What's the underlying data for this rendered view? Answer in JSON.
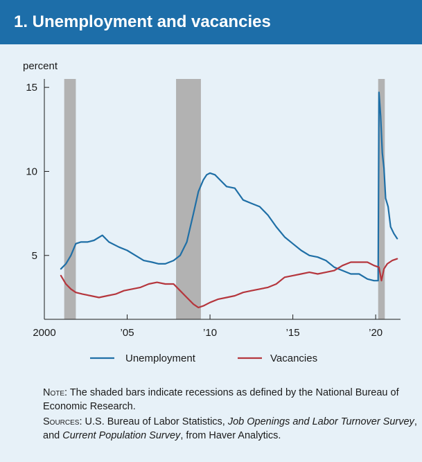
{
  "header": {
    "title": "1. Unemployment and vacancies"
  },
  "colors": {
    "header_bg": "#1d6ea9",
    "unemployment": "#1f6fa6",
    "vacancies": "#b5363d",
    "recession": "#b2b2b2"
  },
  "chart_data": {
    "type": "line",
    "title": "1. Unemployment and vacancies",
    "ylabel": "percent",
    "xlabel": "",
    "xlim": [
      2000,
      2021.5
    ],
    "ylim": [
      1.2,
      15.5
    ],
    "x_ticks": [
      2000,
      2005,
      2010,
      2015,
      2020
    ],
    "x_tick_labels": [
      "2000",
      "’05",
      "’10",
      "’15",
      "’20"
    ],
    "y_ticks": [
      5,
      10,
      15
    ],
    "y_tick_labels": [
      "5",
      "10",
      "15"
    ],
    "recessions": [
      [
        2001.2,
        2001.9
      ],
      [
        2007.95,
        2009.45
      ],
      [
        2020.15,
        2020.55
      ]
    ],
    "legend_position": "bottom",
    "series": [
      {
        "name": "Unemployment",
        "x": [
          2001.0,
          2001.3,
          2001.6,
          2001.9,
          2002.2,
          2002.6,
          2003.0,
          2003.5,
          2003.9,
          2004.5,
          2005.0,
          2005.5,
          2006.0,
          2006.5,
          2006.9,
          2007.3,
          2007.8,
          2008.2,
          2008.6,
          2009.0,
          2009.3,
          2009.6,
          2009.8,
          2010.0,
          2010.3,
          2010.6,
          2011.0,
          2011.5,
          2012.0,
          2012.5,
          2013.0,
          2013.5,
          2014.0,
          2014.5,
          2015.0,
          2015.5,
          2016.0,
          2016.5,
          2017.0,
          2017.5,
          2018.0,
          2018.5,
          2019.0,
          2019.5,
          2019.9,
          2020.15,
          2020.2,
          2020.3,
          2020.4,
          2020.5,
          2020.6,
          2020.75,
          2020.9,
          2021.1,
          2021.3
        ],
        "values": [
          4.2,
          4.5,
          5.0,
          5.7,
          5.8,
          5.8,
          5.9,
          6.2,
          5.8,
          5.5,
          5.3,
          5.0,
          4.7,
          4.6,
          4.5,
          4.5,
          4.7,
          5.0,
          5.8,
          7.5,
          8.8,
          9.5,
          9.8,
          9.9,
          9.8,
          9.5,
          9.1,
          9.0,
          8.3,
          8.1,
          7.9,
          7.4,
          6.7,
          6.1,
          5.7,
          5.3,
          5.0,
          4.9,
          4.7,
          4.3,
          4.1,
          3.9,
          3.9,
          3.6,
          3.5,
          3.5,
          14.7,
          13.3,
          11.1,
          10.2,
          8.4,
          7.9,
          6.7,
          6.3,
          6.0
        ]
      },
      {
        "name": "Vacancies",
        "x": [
          2001.0,
          2001.3,
          2001.6,
          2001.9,
          2002.3,
          2002.8,
          2003.3,
          2003.8,
          2004.3,
          2004.8,
          2005.3,
          2005.8,
          2006.3,
          2006.8,
          2007.3,
          2007.8,
          2008.2,
          2008.6,
          2009.0,
          2009.3,
          2009.6,
          2010.0,
          2010.5,
          2011.0,
          2011.5,
          2012.0,
          2012.5,
          2013.0,
          2013.5,
          2014.0,
          2014.5,
          2015.0,
          2015.5,
          2016.0,
          2016.5,
          2017.0,
          2017.5,
          2018.0,
          2018.5,
          2019.0,
          2019.5,
          2019.9,
          2020.2,
          2020.35,
          2020.5,
          2020.7,
          2021.0,
          2021.3
        ],
        "values": [
          3.8,
          3.3,
          3.0,
          2.8,
          2.7,
          2.6,
          2.5,
          2.6,
          2.7,
          2.9,
          3.0,
          3.1,
          3.3,
          3.4,
          3.3,
          3.3,
          2.9,
          2.5,
          2.1,
          1.9,
          2.0,
          2.2,
          2.4,
          2.5,
          2.6,
          2.8,
          2.9,
          3.0,
          3.1,
          3.3,
          3.7,
          3.8,
          3.9,
          4.0,
          3.9,
          4.0,
          4.1,
          4.4,
          4.6,
          4.6,
          4.6,
          4.4,
          4.3,
          3.5,
          4.2,
          4.5,
          4.7,
          4.8
        ]
      }
    ]
  },
  "notes": {
    "note_label": "Note",
    "note_text": ": The shaded bars indicate recessions as defined by the National Bureau of Economic Research.",
    "sources_label": "Sources",
    "sources_text_1": ": U.S. Bureau of Labor Statistics, ",
    "sources_italic_1": "Job Openings and Labor Turnover Survey",
    "sources_text_2": ", and ",
    "sources_italic_2": "Current Population Survey",
    "sources_text_3": ", from Haver Analytics."
  }
}
